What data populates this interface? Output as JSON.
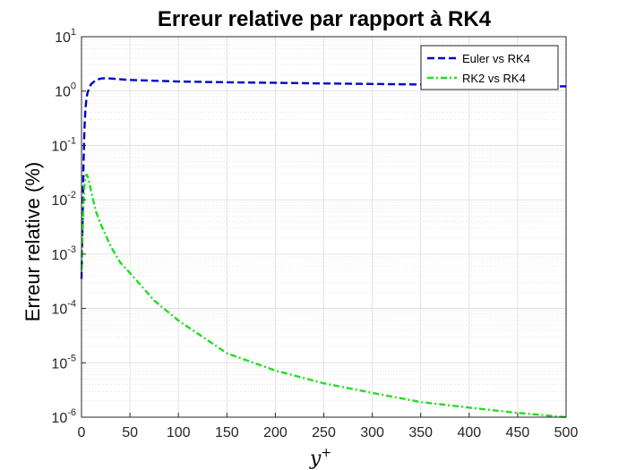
{
  "chart_data": {
    "type": "line",
    "title": "Erreur relative par rapport à RK4",
    "xlabel": "y",
    "xlabel_superscript": "+",
    "ylabel": "Erreur relative (%)",
    "xlim": [
      0,
      500
    ],
    "ylim_log10": [
      -6,
      1
    ],
    "y_scale": "log",
    "x_ticks": [
      "0",
      "50",
      "100",
      "150",
      "200",
      "250",
      "300",
      "350",
      "400",
      "450",
      "500"
    ],
    "y_ticks": [
      {
        "base": "10",
        "exp": "-6"
      },
      {
        "base": "10",
        "exp": "-5"
      },
      {
        "base": "10",
        "exp": "-4"
      },
      {
        "base": "10",
        "exp": "-3"
      },
      {
        "base": "10",
        "exp": "-2"
      },
      {
        "base": "10",
        "exp": "-1"
      },
      {
        "base": "10",
        "exp": "0"
      },
      {
        "base": "10",
        "exp": "1"
      }
    ],
    "grid": true,
    "minor_grid": true,
    "legend_position": "top-right",
    "series": [
      {
        "name": "Euler vs RK4",
        "color": "#0000cc",
        "style": "dashed",
        "x": [
          0,
          1,
          2,
          3,
          4,
          5,
          6,
          8,
          10,
          15,
          20,
          25,
          30,
          40,
          50,
          75,
          100,
          150,
          200,
          250,
          300,
          350,
          400,
          450,
          500
        ],
        "y": [
          0.00035,
          0.003,
          0.04,
          0.2,
          0.45,
          0.7,
          0.9,
          1.15,
          1.35,
          1.6,
          1.7,
          1.72,
          1.7,
          1.65,
          1.6,
          1.55,
          1.5,
          1.45,
          1.42,
          1.38,
          1.35,
          1.32,
          1.28,
          1.25,
          1.22
        ]
      },
      {
        "name": "RK2 vs RK4",
        "color": "#22dd22",
        "style": "dash-dot",
        "x": [
          0,
          1,
          2,
          3,
          4,
          5,
          6,
          7,
          8,
          10,
          15,
          20,
          30,
          40,
          50,
          75,
          100,
          150,
          200,
          250,
          300,
          350,
          400,
          450,
          500
        ],
        "y": [
          0.0005,
          0.002,
          0.008,
          0.018,
          0.026,
          0.029,
          0.028,
          0.025,
          0.021,
          0.014,
          0.006,
          0.0035,
          0.0014,
          0.0007,
          0.00045,
          0.00014,
          6e-05,
          1.5e-05,
          7.2e-06,
          4.2e-06,
          2.8e-06,
          1.9e-06,
          1.5e-06,
          1.2e-06,
          1e-06
        ]
      }
    ]
  }
}
